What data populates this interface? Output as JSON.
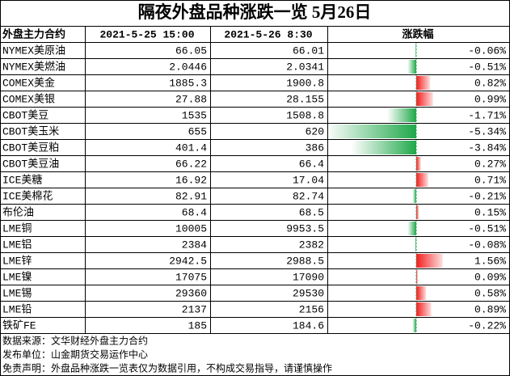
{
  "header": {
    "title": "隔夜外盘品种涨跌一览 5月26日"
  },
  "table": {
    "columns": [
      "外盘主力合约",
      "2021-5-25 15:00",
      "2021-5-26 8:30",
      "涨跌幅"
    ],
    "rows": [
      [
        "NYMEX美原油",
        "66.05",
        "66.01",
        {
          "value": -0.06,
          "label": "-0.06%"
        }
      ],
      [
        "NYMEX美燃油",
        "2.0446",
        "2.0341",
        {
          "value": -0.51,
          "label": "-0.51%"
        }
      ],
      [
        "COMEX美金",
        "1885.3",
        "1900.8",
        {
          "value": 0.82,
          "label": "0.82%"
        }
      ],
      [
        "COMEX美银",
        "27.88",
        "28.155",
        {
          "value": 0.99,
          "label": "0.99%"
        }
      ],
      [
        "CBOT美豆",
        "1535",
        "1508.8",
        {
          "value": -1.71,
          "label": "-1.71%"
        }
      ],
      [
        "CBOT美玉米",
        "655",
        "620",
        {
          "value": -5.34,
          "label": "-5.34%"
        }
      ],
      [
        "CBOT美豆粕",
        "401.4",
        "386",
        {
          "value": -3.84,
          "label": "-3.84%"
        }
      ],
      [
        "CBOT美豆油",
        "66.22",
        "66.4",
        {
          "value": 0.27,
          "label": "0.27%"
        }
      ],
      [
        "ICE美糖",
        "16.92",
        "17.04",
        {
          "value": 0.71,
          "label": "0.71%"
        }
      ],
      [
        "ICE美棉花",
        "82.91",
        "82.74",
        {
          "value": -0.21,
          "label": "-0.21%"
        }
      ],
      [
        "布伦油",
        "68.4",
        "68.5",
        {
          "value": 0.15,
          "label": "0.15%"
        }
      ],
      [
        "LME铜",
        "10005",
        "9953.5",
        {
          "value": -0.51,
          "label": "-0.51%"
        }
      ],
      [
        "LME铝",
        "2384",
        "2382",
        {
          "value": -0.08,
          "label": "-0.08%"
        }
      ],
      [
        "LME锌",
        "2942.5",
        "2988.5",
        {
          "value": 1.56,
          "label": "1.56%"
        }
      ],
      [
        "LME镍",
        "17075",
        "17090",
        {
          "value": 0.09,
          "label": "0.09%"
        }
      ],
      [
        "LME锡",
        "29360",
        "29530",
        {
          "value": 0.58,
          "label": "0.58%"
        }
      ],
      [
        "LME铅",
        "2137",
        "2156",
        {
          "value": 0.89,
          "label": "0.89%"
        }
      ],
      [
        "铁矿FE",
        "185",
        "184.6",
        {
          "value": -0.22,
          "label": "-0.22%"
        }
      ]
    ]
  },
  "footer": [
    "数据来源：文华财经外盘主力合约",
    "发布单位：山金期货交易运作中心",
    "免责声明：外盘品种涨跌一览表仅为数据引用，不构成交易指导，请谨慎操作"
  ]
}
